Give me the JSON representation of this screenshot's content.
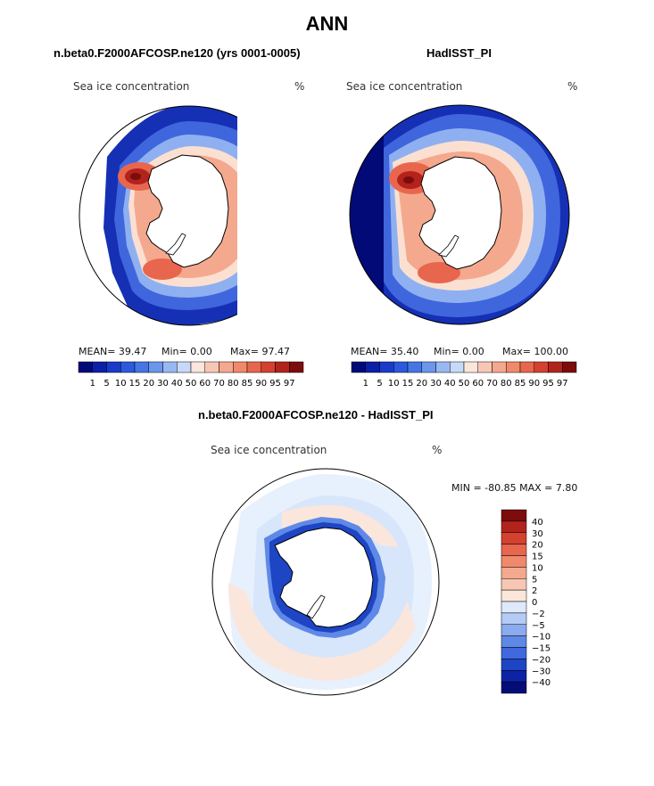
{
  "title": "ANN",
  "panels": [
    {
      "heading": "n.beta0.F2000AFCOSP.ne120 (yrs 0001-0005)",
      "variable": "Sea ice concentration",
      "units": "%",
      "mean_text": "MEAN=  39.47",
      "min_text": "Min=    0.00",
      "max_text": "Max=  97.47"
    },
    {
      "heading": "HadISST_PI",
      "variable": "Sea ice concentration",
      "units": "%",
      "mean_text": "MEAN=  35.40",
      "min_text": "Min=    0.00",
      "max_text": "Max= 100.00"
    }
  ],
  "diff": {
    "heading": "n.beta0.F2000AFCOSP.ne120 - HadISST_PI",
    "variable": "Sea ice concentration",
    "units": "%",
    "minmax_text": "MIN = -80.85  MAX =    7.80"
  },
  "chart_data": [
    {
      "type": "heatmap",
      "title": "n.beta0.F2000AFCOSP.ne120 (yrs 0001-0005)",
      "variable": "Sea ice concentration",
      "units": "%",
      "projection": "south polar stereographic",
      "stats": {
        "mean": 39.47,
        "min": 0.0,
        "max": 97.47
      },
      "colorbar_levels": [
        1,
        5,
        10,
        15,
        20,
        30,
        40,
        50,
        60,
        70,
        80,
        85,
        90,
        95,
        97
      ],
      "colorbar_labels": [
        "1",
        "5",
        "10",
        "15",
        "20",
        "30",
        "40",
        "50",
        "60",
        "70",
        "80",
        "85",
        "90",
        "95",
        "97"
      ],
      "colors": [
        "#020a78",
        "#0b1fa8",
        "#1a3bc9",
        "#2c59de",
        "#4576e4",
        "#6b96eb",
        "#98b8f2",
        "#c7d9f8",
        "#fbe6dc",
        "#f8c7b3",
        "#f4a98e",
        "#f0896c",
        "#e8664e",
        "#d4412f",
        "#b2231c",
        "#7d0c0c"
      ]
    },
    {
      "type": "heatmap",
      "title": "HadISST_PI",
      "variable": "Sea ice concentration",
      "units": "%",
      "projection": "south polar stereographic",
      "stats": {
        "mean": 35.4,
        "min": 0.0,
        "max": 100.0
      },
      "colorbar_levels": [
        1,
        5,
        10,
        15,
        20,
        30,
        40,
        50,
        60,
        70,
        80,
        85,
        90,
        95,
        97
      ],
      "colorbar_labels": [
        "1",
        "5",
        "10",
        "15",
        "20",
        "30",
        "40",
        "50",
        "60",
        "70",
        "80",
        "85",
        "90",
        "95",
        "97"
      ],
      "colors": [
        "#020a78",
        "#0b1fa8",
        "#1a3bc9",
        "#2c59de",
        "#4576e4",
        "#6b96eb",
        "#98b8f2",
        "#c7d9f8",
        "#fbe6dc",
        "#f8c7b3",
        "#f4a98e",
        "#f0896c",
        "#e8664e",
        "#d4412f",
        "#b2231c",
        "#7d0c0c"
      ]
    },
    {
      "type": "heatmap",
      "title": "n.beta0.F2000AFCOSP.ne120 - HadISST_PI",
      "variable": "Sea ice concentration",
      "units": "%",
      "projection": "south polar stereographic",
      "stats": {
        "min": -80.85,
        "max": 7.8
      },
      "colorbar_levels": [
        40,
        30,
        20,
        15,
        10,
        5,
        2,
        0,
        -2,
        -5,
        -10,
        -15,
        -20,
        -30,
        -40
      ],
      "colorbar_labels": [
        "40",
        "30",
        "20",
        "15",
        "10",
        "5",
        "2",
        "0",
        "−2",
        "−5",
        "−10",
        "−15",
        "−20",
        "−30",
        "−40"
      ],
      "colors": [
        "#7d0c0c",
        "#b2231c",
        "#d4412f",
        "#e8664e",
        "#f0896c",
        "#f4a98e",
        "#f8c7b3",
        "#fbe6dc",
        "#deeafc",
        "#b4cbf6",
        "#8aabef",
        "#5f89e6",
        "#3f69dc",
        "#1d45c4",
        "#0c24a4",
        "#030c78"
      ]
    }
  ]
}
